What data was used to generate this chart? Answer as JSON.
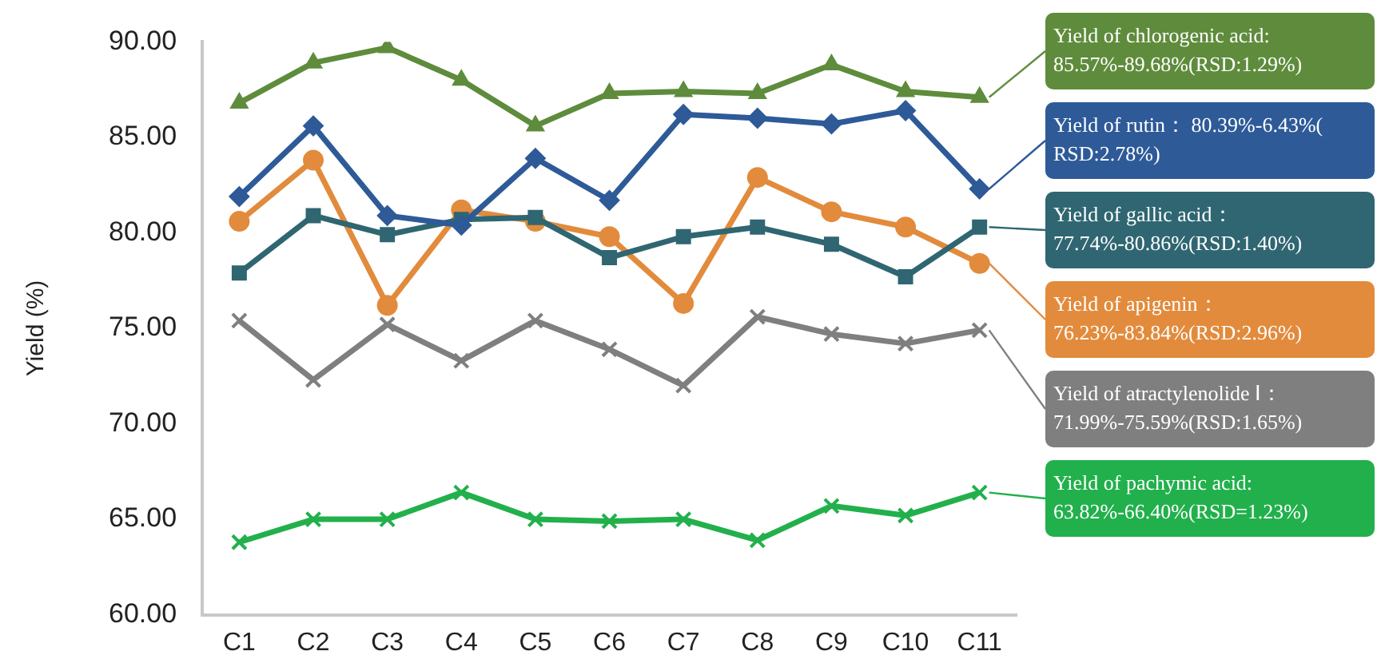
{
  "chart_data": {
    "type": "line",
    "ylabel": "Yield (%)",
    "categories": [
      "C1",
      "C2",
      "C3",
      "C4",
      "C5",
      "C6",
      "C7",
      "C8",
      "C9",
      "C10",
      "C11"
    ],
    "ylim": [
      60,
      90
    ],
    "yticks": [
      {
        "value": 60,
        "label": "60.00"
      },
      {
        "value": 65,
        "label": "65.00"
      },
      {
        "value": 70,
        "label": "70.00"
      },
      {
        "value": 75,
        "label": "75.00"
      },
      {
        "value": 80,
        "label": "80.00"
      },
      {
        "value": 85,
        "label": "85.00"
      },
      {
        "value": 90,
        "label": "90.00"
      }
    ],
    "grid": false,
    "legend": "right",
    "line_style": "solid",
    "series": [
      {
        "name": "Yield of chlorogenic acid: 85.57%-89.68%(RSD:1.29%)",
        "color": "#5e8c3c",
        "marker": "triangle",
        "values": [
          86.8,
          88.9,
          89.7,
          88.0,
          85.6,
          87.3,
          87.4,
          87.3,
          88.8,
          87.4,
          87.1
        ]
      },
      {
        "name": "Yield of rutin： 80.39%-6.43%( RSD:2.78%)",
        "color": "#2e5a98",
        "marker": "diamond",
        "values": [
          81.9,
          85.6,
          80.9,
          80.4,
          83.9,
          81.7,
          86.2,
          86.0,
          85.7,
          86.4,
          82.3
        ]
      },
      {
        "name": "Yield of gallic acid： 77.74%-80.86%(RSD:1.40%)",
        "color": "#2f6672",
        "marker": "square",
        "values": [
          77.9,
          80.9,
          79.9,
          80.7,
          80.8,
          78.7,
          79.8,
          80.3,
          79.4,
          77.7,
          80.3
        ]
      },
      {
        "name": "Yield of apigenin： 76.23%-83.84%(RSD:2.96%)",
        "color": "#e28b3c",
        "marker": "circle",
        "values": [
          80.6,
          83.8,
          76.2,
          81.2,
          80.6,
          79.8,
          76.3,
          82.9,
          81.1,
          80.3,
          78.4
        ]
      },
      {
        "name": "Yield of atractylenolide Ⅰ： 71.99%-75.59%(RSD:1.65%)",
        "color": "#7f7f7f",
        "marker": "cross",
        "values": [
          75.4,
          72.3,
          75.2,
          73.3,
          75.4,
          73.9,
          72.0,
          75.6,
          74.7,
          74.2,
          74.9
        ]
      },
      {
        "name": "Yield of pachymic acid: 63.82%-66.40%(RSD=1.23%)",
        "color": "#22b04c",
        "marker": "cross",
        "values": [
          63.8,
          65.0,
          65.0,
          66.4,
          65.0,
          64.9,
          65.0,
          63.9,
          65.7,
          65.2,
          66.4
        ]
      }
    ]
  }
}
